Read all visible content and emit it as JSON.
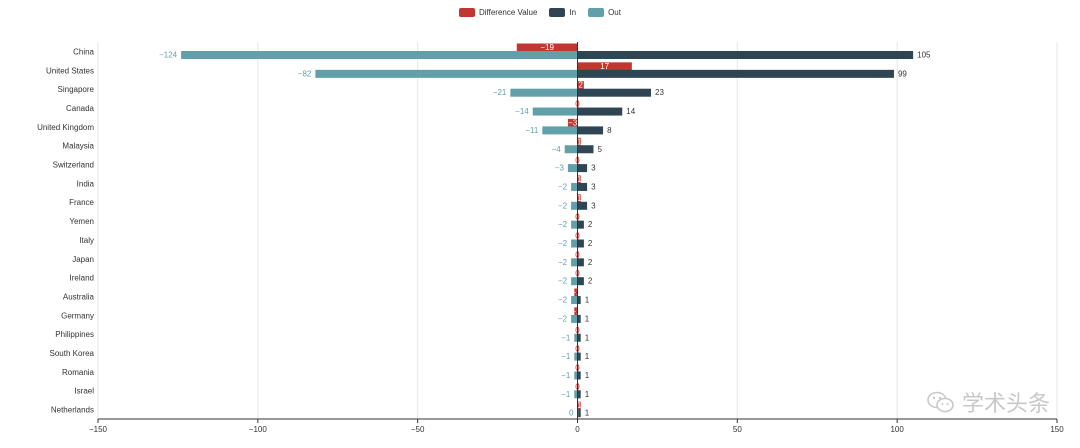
{
  "colors": {
    "diff": "#c23531",
    "in": "#2f4554",
    "out": "#61a0a8",
    "grid": "#e6e6e6",
    "axis": "#333333",
    "label": "#333333"
  },
  "legend": [
    {
      "name": "Difference Value",
      "color": "#c23531"
    },
    {
      "name": "In",
      "color": "#2f4554"
    },
    {
      "name": "Out",
      "color": "#61a0a8"
    }
  ],
  "watermark": {
    "text": "学术头条",
    "icon": "wechat-icon"
  },
  "chart_data": {
    "type": "bar",
    "orientation": "horizontal",
    "categories": [
      "China",
      "United States",
      "Singapore",
      "Canada",
      "United Kingdom",
      "Malaysia",
      "Switzerland",
      "India",
      "France",
      "Yemen",
      "Italy",
      "Japan",
      "Ireland",
      "Australia",
      "Germany",
      "Philippines",
      "South Korea",
      "Romania",
      "Israel",
      "Netherlands"
    ],
    "series": [
      {
        "name": "Difference Value",
        "values": [
          -19,
          17,
          2,
          0,
          -3,
          1,
          0,
          1,
          1,
          0,
          0,
          0,
          0,
          -1,
          -1,
          0,
          0,
          0,
          0,
          1
        ]
      },
      {
        "name": "In",
        "values": [
          105,
          99,
          23,
          14,
          8,
          5,
          3,
          3,
          3,
          2,
          2,
          2,
          2,
          1,
          1,
          1,
          1,
          1,
          1,
          1
        ]
      },
      {
        "name": "Out",
        "values": [
          -124,
          -82,
          -21,
          -14,
          -11,
          -4,
          -3,
          -2,
          -2,
          -2,
          -2,
          -2,
          -2,
          -2,
          -2,
          -1,
          -1,
          -1,
          -1,
          0
        ]
      }
    ],
    "xlim": [
      -150,
      150
    ],
    "xticks": [
      -150,
      -100,
      -50,
      0,
      50,
      100,
      150
    ],
    "grid": true,
    "legend_position": "top-center"
  }
}
